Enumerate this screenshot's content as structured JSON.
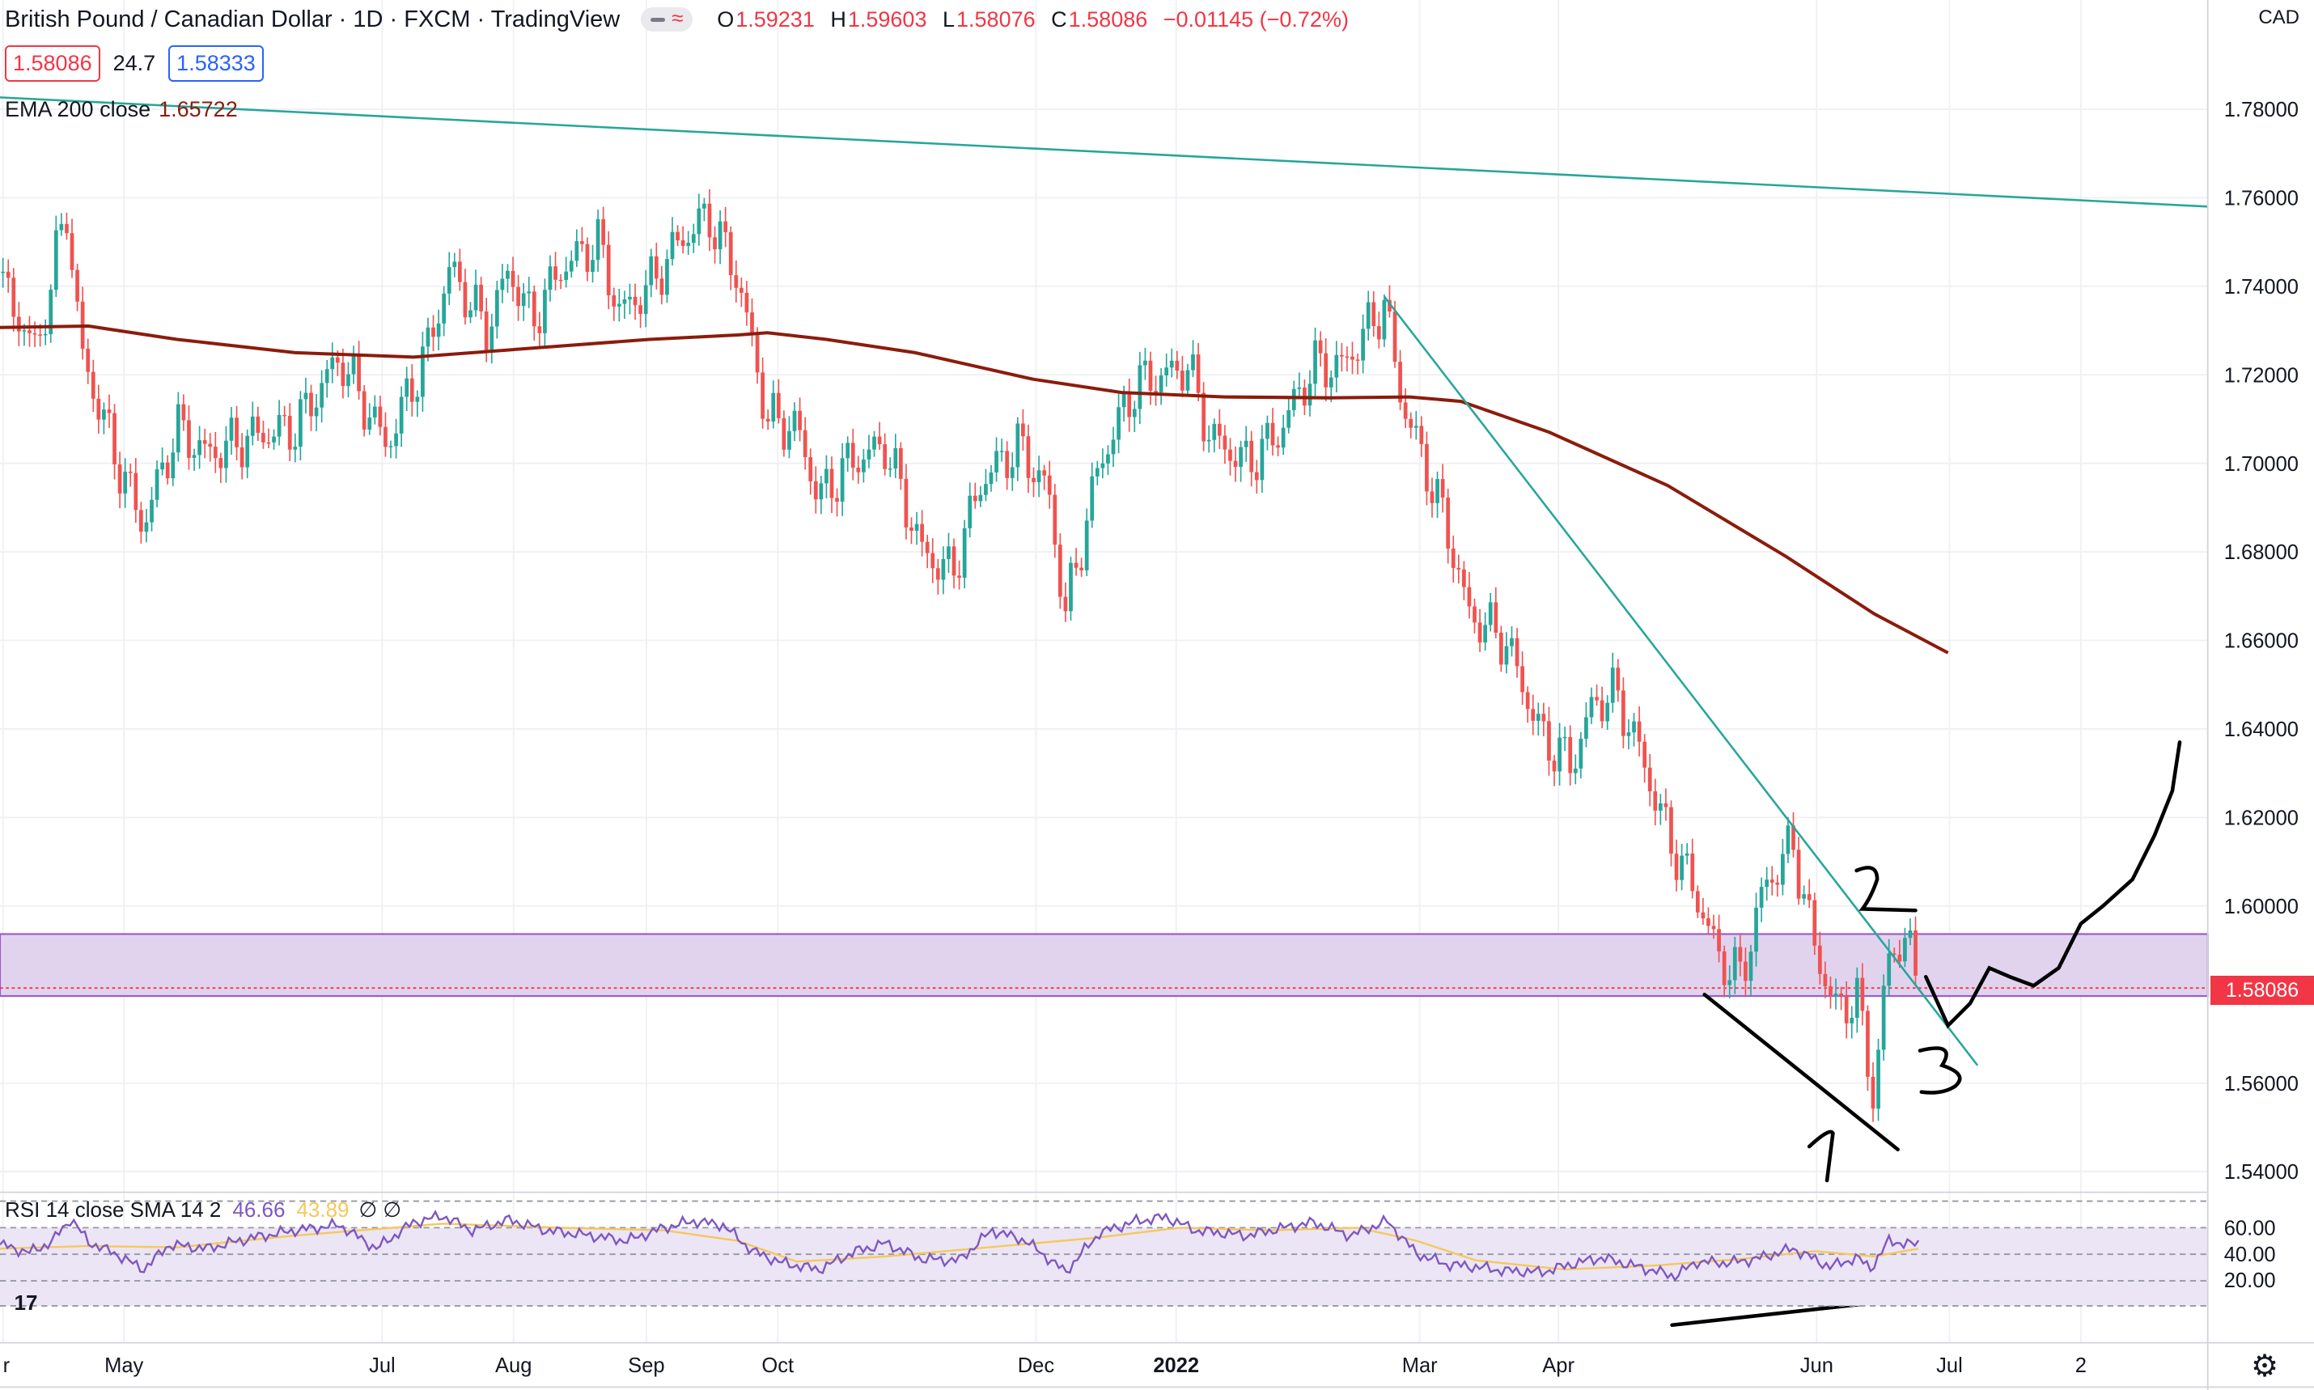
{
  "header": {
    "symbol": "British Pound / Canadian Dollar · 1D · FXCM · TradingView",
    "ohlc": [
      {
        "key": "O",
        "value": "1.59231"
      },
      {
        "key": "H",
        "value": "1.59603"
      },
      {
        "key": "L",
        "value": "1.58076"
      },
      {
        "key": "C",
        "value": "1.58086"
      }
    ],
    "change": "−0.01145 (−0.72%)"
  },
  "trade": {
    "sell": "1.58086",
    "spread": "24.7",
    "buy": "1.58333"
  },
  "indicators": {
    "ema_name": "EMA 200 close",
    "ema_value": "1.65722",
    "rsi_name": "RSI 14 close SMA 14 2",
    "rsi_value": "46.66",
    "rsi_sma_value": "43.89",
    "rsi_extra": "∅ ∅"
  },
  "price_axis": {
    "currency": "CAD",
    "last_price": "1.58086"
  },
  "colors": {
    "up": "#26a69a",
    "down": "#ef5350",
    "ema": "#8b1c0c",
    "rsi": "#7e57c2",
    "rsi_sma": "#f5c85a",
    "zone": "#e1d3ee",
    "trendline": "#26a69a"
  },
  "icons": {
    "logo": "tradingview-logo-icon",
    "settings": "gear-icon"
  },
  "chart_data": {
    "type": "candlestick",
    "ylim": [
      1.54,
      1.8
    ],
    "y_ticks": [
      "1.78000",
      "1.76000",
      "1.74000",
      "1.72000",
      "1.70000",
      "1.68000",
      "1.66000",
      "1.64000",
      "1.62000",
      "1.60000",
      "1.56000",
      "1.54000"
    ],
    "x_ticks": [
      "r",
      "May",
      "Jul",
      "Aug",
      "Sep",
      "Oct",
      "Dec",
      "2022",
      "Mar",
      "Apr",
      "Jun",
      "Jul",
      "2"
    ],
    "rsi_ticks": [
      "60.00",
      "40.00",
      "20.00"
    ],
    "close_anchors": [
      [
        0,
        1.741
      ],
      [
        25,
        1.725
      ],
      [
        45,
        1.758
      ],
      [
        55,
        1.725
      ],
      [
        80,
        1.7
      ],
      [
        97,
        1.686
      ],
      [
        120,
        1.708
      ],
      [
        140,
        1.702
      ],
      [
        170,
        1.706
      ],
      [
        200,
        1.708
      ],
      [
        230,
        1.724
      ],
      [
        262,
        1.704
      ],
      [
        290,
        1.726
      ],
      [
        305,
        1.744
      ],
      [
        330,
        1.73
      ],
      [
        345,
        1.744
      ],
      [
        360,
        1.732
      ],
      [
        380,
        1.744
      ],
      [
        405,
        1.75
      ],
      [
        420,
        1.734
      ],
      [
        440,
        1.74
      ],
      [
        460,
        1.75
      ],
      [
        480,
        1.756
      ],
      [
        500,
        1.742
      ],
      [
        520,
        1.71
      ],
      [
        540,
        1.708
      ],
      [
        555,
        1.692
      ],
      [
        575,
        1.7
      ],
      [
        600,
        1.704
      ],
      [
        625,
        1.68
      ],
      [
        645,
        1.675
      ],
      [
        665,
        1.696
      ],
      [
        690,
        1.704
      ],
      [
        710,
        1.694
      ],
      [
        722,
        1.666
      ],
      [
        745,
        1.7
      ],
      [
        770,
        1.718
      ],
      [
        790,
        1.72
      ],
      [
        805,
        1.722
      ],
      [
        820,
        1.706
      ],
      [
        845,
        1.7
      ],
      [
        865,
        1.706
      ],
      [
        890,
        1.722
      ],
      [
        910,
        1.722
      ],
      [
        938,
        1.736
      ],
      [
        950,
        1.714
      ],
      [
        965,
        1.7
      ],
      [
        980,
        1.686
      ],
      [
        995,
        1.666
      ],
      [
        1020,
        1.66
      ],
      [
        1045,
        1.638
      ],
      [
        1065,
        1.632
      ],
      [
        1080,
        1.646
      ],
      [
        1095,
        1.648
      ],
      [
        1110,
        1.636
      ],
      [
        1130,
        1.616
      ],
      [
        1150,
        1.602
      ],
      [
        1165,
        1.588
      ],
      [
        1180,
        1.584
      ],
      [
        1195,
        1.604
      ],
      [
        1215,
        1.614
      ],
      [
        1230,
        1.59
      ],
      [
        1245,
        1.576
      ],
      [
        1258,
        1.58
      ],
      [
        1270,
        1.556
      ],
      [
        1278,
        1.586
      ],
      [
        1290,
        1.594
      ],
      [
        1300,
        1.581
      ]
    ],
    "ema_200": [
      [
        0,
        1.7307
      ],
      [
        60,
        1.731
      ],
      [
        120,
        1.728
      ],
      [
        200,
        1.725
      ],
      [
        280,
        1.724
      ],
      [
        360,
        1.726
      ],
      [
        440,
        1.728
      ],
      [
        500,
        1.729
      ],
      [
        520,
        1.7295
      ],
      [
        560,
        1.728
      ],
      [
        620,
        1.725
      ],
      [
        700,
        1.719
      ],
      [
        760,
        1.716
      ],
      [
        830,
        1.715
      ],
      [
        900,
        1.7148
      ],
      [
        955,
        1.715
      ],
      [
        990,
        1.714
      ],
      [
        1050,
        1.707
      ],
      [
        1130,
        1.695
      ],
      [
        1210,
        1.679
      ],
      [
        1270,
        1.666
      ],
      [
        1320,
        1.6572
      ]
    ],
    "rsi_14": [
      [
        0,
        47
      ],
      [
        20,
        41
      ],
      [
        35,
        49
      ],
      [
        48,
        67
      ],
      [
        60,
        49
      ],
      [
        80,
        39
      ],
      [
        97,
        28
      ],
      [
        115,
        47
      ],
      [
        140,
        44
      ],
      [
        170,
        52
      ],
      [
        200,
        58
      ],
      [
        230,
        62
      ],
      [
        255,
        44
      ],
      [
        280,
        64
      ],
      [
        300,
        69
      ],
      [
        320,
        58
      ],
      [
        345,
        66
      ],
      [
        370,
        58
      ],
      [
        400,
        54
      ],
      [
        425,
        50
      ],
      [
        450,
        60
      ],
      [
        470,
        65
      ],
      [
        490,
        62
      ],
      [
        510,
        42
      ],
      [
        530,
        33
      ],
      [
        555,
        28
      ],
      [
        580,
        42
      ],
      [
        600,
        48
      ],
      [
        625,
        36
      ],
      [
        650,
        35
      ],
      [
        672,
        58
      ],
      [
        695,
        50
      ],
      [
        722,
        26
      ],
      [
        745,
        56
      ],
      [
        770,
        65
      ],
      [
        790,
        68
      ],
      [
        810,
        58
      ],
      [
        845,
        54
      ],
      [
        870,
        60
      ],
      [
        890,
        64
      ],
      [
        915,
        54
      ],
      [
        940,
        65
      ],
      [
        960,
        40
      ],
      [
        980,
        32
      ],
      [
        1000,
        30
      ],
      [
        1020,
        27
      ],
      [
        1045,
        26
      ],
      [
        1065,
        32
      ],
      [
        1085,
        37
      ],
      [
        1110,
        30
      ],
      [
        1135,
        23
      ],
      [
        1150,
        34
      ],
      [
        1170,
        33
      ],
      [
        1190,
        36
      ],
      [
        1215,
        44
      ],
      [
        1240,
        30
      ],
      [
        1258,
        37
      ],
      [
        1268,
        29
      ],
      [
        1280,
        50
      ],
      [
        1295,
        47
      ],
      [
        1300,
        48
      ]
    ],
    "rsi_sma": [
      [
        0,
        44
      ],
      [
        60,
        46
      ],
      [
        120,
        45
      ],
      [
        200,
        54
      ],
      [
        300,
        63
      ],
      [
        380,
        60
      ],
      [
        450,
        58
      ],
      [
        500,
        50
      ],
      [
        540,
        34
      ],
      [
        600,
        38
      ],
      [
        680,
        46
      ],
      [
        740,
        52
      ],
      [
        800,
        60
      ],
      [
        860,
        58
      ],
      [
        920,
        60
      ],
      [
        960,
        50
      ],
      [
        1000,
        35
      ],
      [
        1060,
        28
      ],
      [
        1120,
        31
      ],
      [
        1180,
        36
      ],
      [
        1230,
        42
      ],
      [
        1270,
        38
      ],
      [
        1300,
        44
      ]
    ],
    "support_zone": [
      1.5795,
      1.5935
    ],
    "last_price_line": 1.5808,
    "long_trendline": [
      [
        0,
        1.783
      ],
      [
        1500,
        1.759
      ]
    ],
    "down_trendline": [
      [
        938,
        1.7385
      ],
      [
        1340,
        1.564
      ]
    ],
    "annotations": [
      "1",
      "2",
      "3"
    ],
    "projection": [
      [
        1305,
        1.584
      ],
      [
        1320,
        1.573
      ],
      [
        1335,
        1.578
      ],
      [
        1348,
        1.586
      ],
      [
        1362,
        1.584
      ],
      [
        1378,
        1.582
      ],
      [
        1395,
        1.586
      ],
      [
        1410,
        1.596
      ],
      [
        1425,
        1.6
      ],
      [
        1445,
        1.606
      ],
      [
        1460,
        1.616
      ],
      [
        1472,
        1.626
      ],
      [
        1477,
        1.637
      ]
    ]
  }
}
